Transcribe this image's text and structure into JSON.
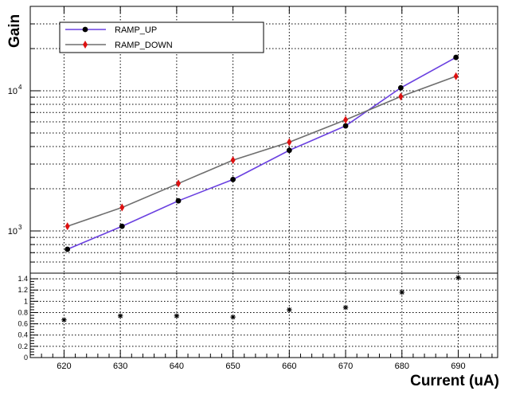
{
  "chart_data": [
    {
      "type": "line",
      "ylabel": "Gain",
      "yscale": "log",
      "ylim": [
        500,
        40000
      ],
      "y_tick_labels": [
        {
          "value": 1000,
          "base": "10",
          "exp": "3"
        },
        {
          "value": 10000,
          "base": "10",
          "exp": "4"
        }
      ],
      "grid": true,
      "legend_position": "top-left",
      "series": [
        {
          "name": "RAMP_UP",
          "color": "#6a40e0",
          "marker": "circle",
          "marker_color": "#000000",
          "points": [
            [
              620.6,
              740
            ],
            [
              630.3,
              1080
            ],
            [
              640.3,
              1640
            ],
            [
              650,
              2330
            ],
            [
              660,
              3760
            ],
            [
              670,
              5620
            ],
            [
              679.8,
              10500
            ],
            [
              689.6,
              17300
            ]
          ]
        },
        {
          "name": "RAMP_DOWN",
          "color": "#6e6e6e",
          "marker": "diamond",
          "marker_color": "#dd1111",
          "points": [
            [
              620.6,
              1080
            ],
            [
              630.3,
              1470
            ],
            [
              640.3,
              2180
            ],
            [
              650,
              3200
            ],
            [
              660,
              4300
            ],
            [
              670,
              6200
            ],
            [
              679.8,
              9100
            ],
            [
              689.6,
              12700
            ]
          ]
        }
      ]
    },
    {
      "type": "scatter",
      "xlabel": "Current (uA)",
      "xlim": [
        614,
        697
      ],
      "ylim": [
        0,
        1.5
      ],
      "x_ticks": [
        620,
        630,
        640,
        650,
        660,
        670,
        680,
        690
      ],
      "y_ticks": [
        0,
        0.2,
        0.4,
        0.6,
        0.8,
        1,
        1.2,
        1.4
      ],
      "y_tick_labels": [
        "0",
        "0.2",
        "0.4",
        "0.6",
        "0.8",
        "1",
        "1.2",
        "1.4"
      ],
      "grid": true,
      "marker": "asterisk",
      "points": [
        [
          620,
          0.67
        ],
        [
          630,
          0.74
        ],
        [
          640,
          0.74
        ],
        [
          650,
          0.72
        ],
        [
          660,
          0.85
        ],
        [
          670,
          0.89
        ],
        [
          680,
          1.16
        ],
        [
          690,
          1.42
        ]
      ]
    }
  ]
}
